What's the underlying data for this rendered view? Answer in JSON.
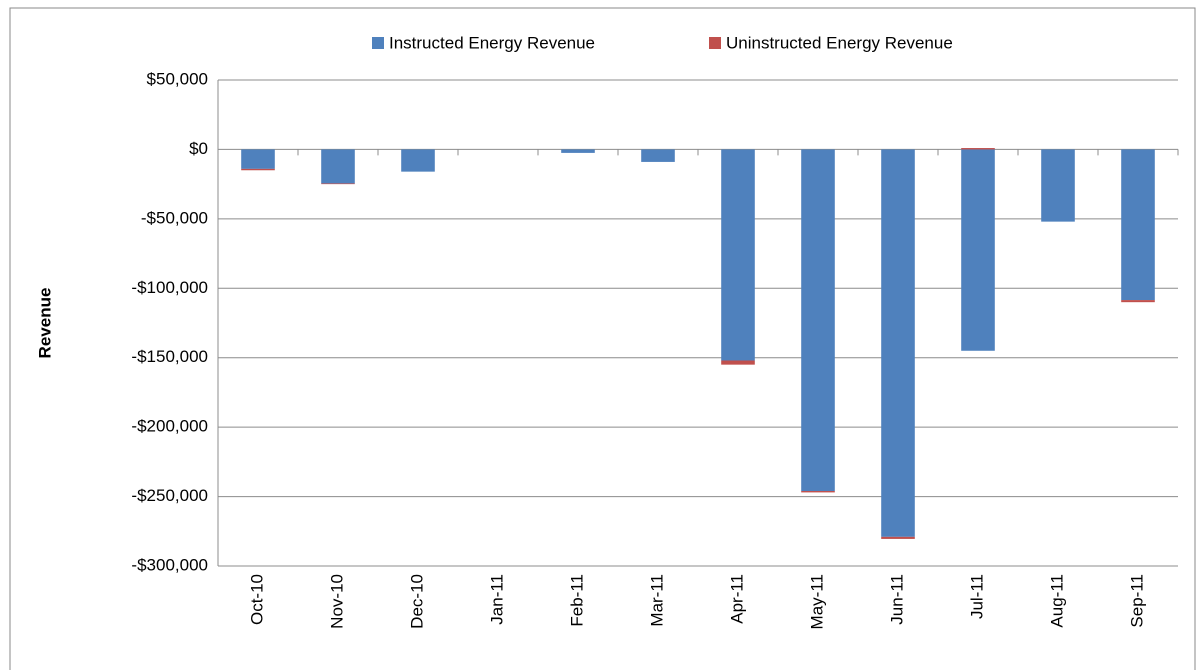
{
  "chart_data": {
    "type": "stacked_bar",
    "y_label": "Revenue",
    "categories": [
      "Oct-10",
      "Nov-10",
      "Dec-10",
      "Jan-11",
      "Feb-11",
      "Mar-11",
      "Apr-11",
      "May-11",
      "Jun-11",
      "Jul-11",
      "Aug-11",
      "Sep-11"
    ],
    "series": [
      {
        "name": "Instructed Energy Revenue",
        "color": "#4f81bd",
        "values": [
          -14000,
          -24500,
          -16000,
          0,
          -2500,
          -9000,
          -152000,
          -246000,
          -279000,
          -145000,
          -52000,
          -108500
        ]
      },
      {
        "name": "Uninstructed Energy Revenue",
        "color": "#c0504d",
        "values": [
          -1000,
          -500,
          0,
          0,
          0,
          0,
          -3000,
          -1000,
          -1500,
          1000,
          0,
          -1500
        ]
      }
    ],
    "ylim": [
      -300000,
      50000
    ],
    "yticks": [
      {
        "value": -300000,
        "label": "-$300,000"
      },
      {
        "value": -250000,
        "label": "-$250,000"
      },
      {
        "value": -200000,
        "label": "-$200,000"
      },
      {
        "value": -150000,
        "label": "-$150,000"
      },
      {
        "value": -100000,
        "label": "-$100,000"
      },
      {
        "value": -50000,
        "label": "-$50,000"
      },
      {
        "value": 0,
        "label": "$0"
      },
      {
        "value": 50000,
        "label": "$50,000"
      }
    ],
    "grid": true,
    "legend": "top"
  }
}
